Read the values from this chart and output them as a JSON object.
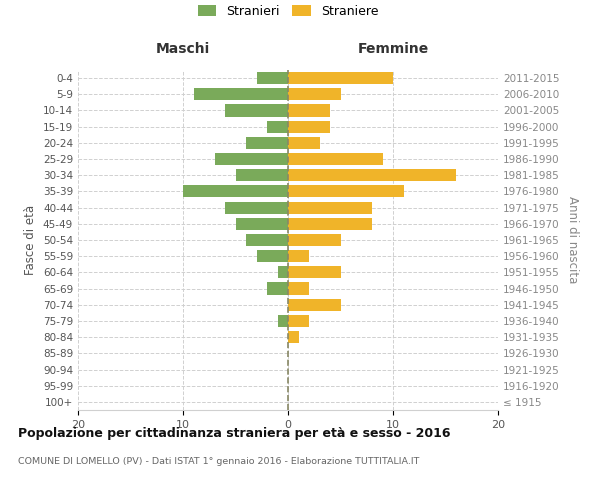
{
  "age_groups": [
    "100+",
    "95-99",
    "90-94",
    "85-89",
    "80-84",
    "75-79",
    "70-74",
    "65-69",
    "60-64",
    "55-59",
    "50-54",
    "45-49",
    "40-44",
    "35-39",
    "30-34",
    "25-29",
    "20-24",
    "15-19",
    "10-14",
    "5-9",
    "0-4"
  ],
  "birth_years": [
    "≤ 1915",
    "1916-1920",
    "1921-1925",
    "1926-1930",
    "1931-1935",
    "1936-1940",
    "1941-1945",
    "1946-1950",
    "1951-1955",
    "1956-1960",
    "1961-1965",
    "1966-1970",
    "1971-1975",
    "1976-1980",
    "1981-1985",
    "1986-1990",
    "1991-1995",
    "1996-2000",
    "2001-2005",
    "2006-2010",
    "2011-2015"
  ],
  "maschi": [
    0,
    0,
    0,
    0,
    0,
    1,
    0,
    2,
    1,
    3,
    4,
    5,
    6,
    10,
    5,
    7,
    4,
    2,
    6,
    9,
    3
  ],
  "femmine": [
    0,
    0,
    0,
    0,
    1,
    2,
    5,
    2,
    5,
    2,
    5,
    8,
    8,
    11,
    16,
    9,
    3,
    4,
    4,
    5,
    10
  ],
  "male_color": "#7aaa5a",
  "female_color": "#f0b429",
  "title": "Popolazione per cittadinanza straniera per età e sesso - 2016",
  "subtitle": "COMUNE DI LOMELLO (PV) - Dati ISTAT 1° gennaio 2016 - Elaborazione TUTTITALIA.IT",
  "xlabel_left": "Maschi",
  "xlabel_right": "Femmine",
  "ylabel_left": "Fasce di età",
  "ylabel_right": "Anni di nascita",
  "xlim_min": -20,
  "xlim_max": 20,
  "legend_maschi": "Stranieri",
  "legend_femmine": "Straniere",
  "bg_color": "#ffffff",
  "grid_color": "#d0d0d0",
  "bar_height": 0.75
}
